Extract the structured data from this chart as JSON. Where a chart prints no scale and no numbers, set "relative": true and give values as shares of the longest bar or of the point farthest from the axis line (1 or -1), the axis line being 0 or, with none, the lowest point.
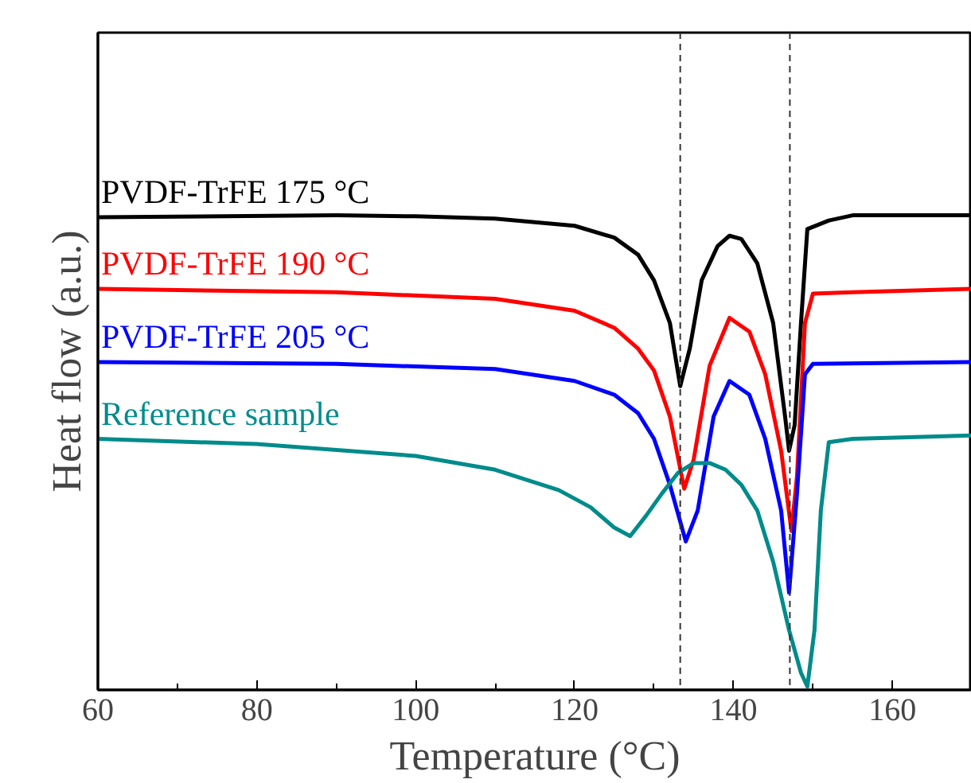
{
  "chart_data": {
    "type": "line",
    "relative": true,
    "xlabel": "Temperature (°C)",
    "ylabel": "Heat flow (a.u.)",
    "xlim": [
      60,
      170
    ],
    "xticks": [
      60,
      80,
      100,
      120,
      140,
      160
    ],
    "tick_labels": "x",
    "grid": false,
    "marker": "none",
    "line_style": "solid",
    "ref_lines": [
      {
        "axis": "x",
        "value": 133.3,
        "color": "#333333",
        "line_style": "dashed"
      },
      {
        "axis": "x",
        "value": 147.1,
        "color": "#333333",
        "line_style": "dashed"
      }
    ],
    "series": [
      {
        "name": "PVDF-TrFE  175 °C",
        "color": "#000000",
        "x": [
          60,
          90,
          100,
          110,
          120,
          125,
          128,
          130,
          132,
          133.3,
          134.5,
          136,
          138,
          139.5,
          141,
          143,
          145,
          146.5,
          147,
          147.7,
          148.5,
          149.3,
          152,
          155,
          170
        ],
        "values": [
          0.996,
          1.0,
          0.998,
          0.993,
          0.978,
          0.953,
          0.917,
          0.863,
          0.773,
          0.64,
          0.719,
          0.863,
          0.935,
          0.957,
          0.95,
          0.899,
          0.773,
          0.576,
          0.504,
          0.558,
          0.773,
          0.971,
          0.989,
          1.0,
          1.0
        ]
      },
      {
        "name": "PVDF-TrFE  190 °C",
        "color": "#ff0000",
        "x": [
          60,
          90,
          110,
          120,
          125,
          128,
          130,
          132,
          133.8,
          135,
          137,
          139.5,
          142,
          144,
          146,
          147.3,
          148,
          149,
          150,
          155,
          170
        ],
        "values": [
          0.845,
          0.838,
          0.824,
          0.799,
          0.763,
          0.719,
          0.673,
          0.576,
          0.424,
          0.486,
          0.683,
          0.784,
          0.755,
          0.665,
          0.504,
          0.335,
          0.45,
          0.773,
          0.835,
          0.838,
          0.845
        ]
      },
      {
        "name": "PVDF-TrFE  205 °C",
        "color": "#0000ff",
        "x": [
          60,
          90,
          110,
          120,
          125,
          128,
          130,
          132,
          134,
          135.5,
          137.5,
          139.5,
          142,
          144,
          146,
          147,
          148,
          149,
          150,
          170
        ],
        "values": [
          0.691,
          0.687,
          0.676,
          0.651,
          0.622,
          0.583,
          0.529,
          0.432,
          0.313,
          0.378,
          0.576,
          0.651,
          0.622,
          0.529,
          0.378,
          0.205,
          0.414,
          0.665,
          0.687,
          0.691
        ]
      },
      {
        "name": "Reference sample",
        "color": "#008b8b",
        "x": [
          60,
          80,
          100,
          110,
          118,
          122,
          125,
          127,
          129,
          131,
          133,
          135,
          137,
          139,
          141,
          143,
          145,
          147,
          148.5,
          149.3,
          150.2,
          151,
          152,
          155,
          170
        ],
        "values": [
          0.529,
          0.518,
          0.493,
          0.464,
          0.421,
          0.385,
          0.342,
          0.324,
          0.367,
          0.414,
          0.457,
          0.478,
          0.478,
          0.464,
          0.432,
          0.378,
          0.27,
          0.126,
          0.036,
          0.007,
          0.126,
          0.378,
          0.522,
          0.529,
          0.536
        ]
      }
    ]
  }
}
